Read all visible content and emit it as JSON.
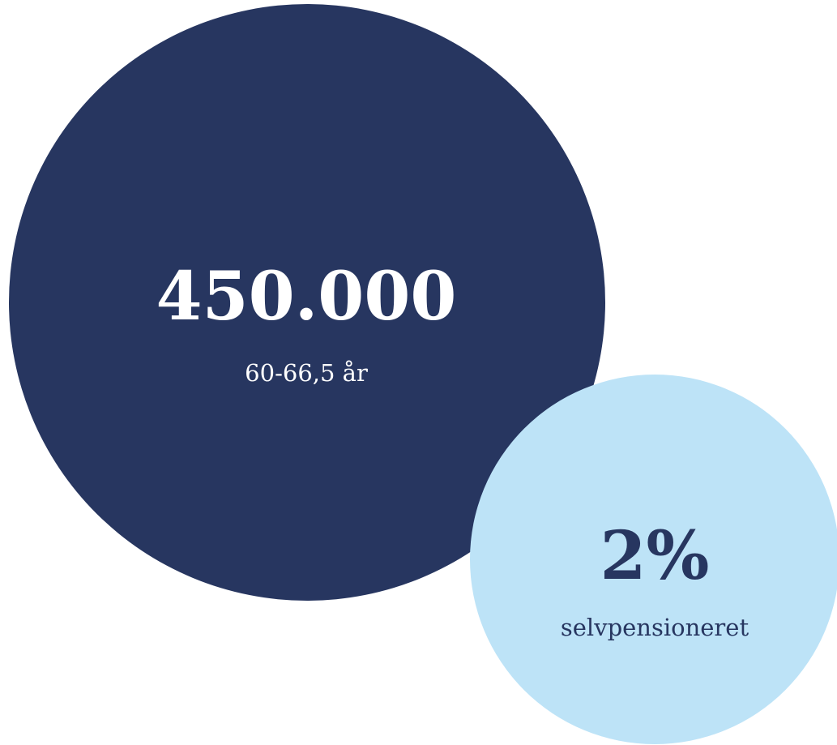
{
  "circles": [
    {
      "value": "450.000",
      "label": "60-66,5 år"
    },
    {
      "value": "2%",
      "label": "selvpensioneret"
    }
  ]
}
